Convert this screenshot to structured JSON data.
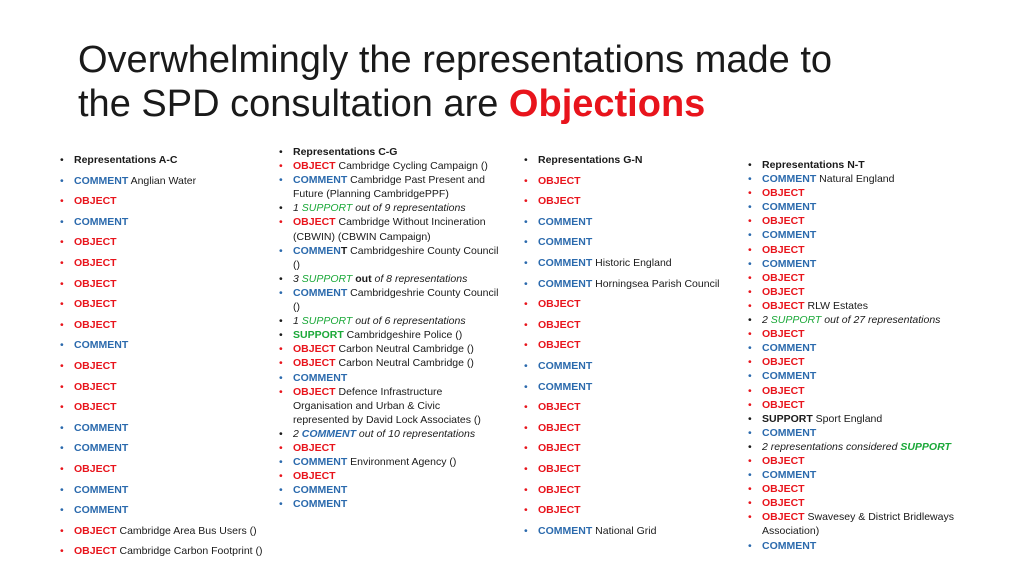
{
  "title": {
    "line1": "Overwhelmingly the representations made to",
    "line2_prefix": "the SPD consultation are ",
    "highlight": "Objections"
  },
  "colors": {
    "object": "#e8141c",
    "comment": "#2b6aad",
    "support": "#1aa838",
    "text": "#1a1a1a"
  },
  "columns": [
    {
      "id": "a-c",
      "items": [
        [
          {
            "t": "Representations A-C",
            "s": "head"
          }
        ],
        [
          {
            "t": "COMMENT",
            "s": "comment"
          },
          {
            "t": " Anglian Water",
            "s": "text"
          }
        ],
        [
          {
            "t": "OBJECT",
            "s": "object"
          }
        ],
        [
          {
            "t": "COMMENT",
            "s": "comment"
          }
        ],
        [
          {
            "t": "OBJECT",
            "s": "object"
          }
        ],
        [
          {
            "t": "OBJECT",
            "s": "object"
          }
        ],
        [
          {
            "t": "OBJECT",
            "s": "object"
          }
        ],
        [
          {
            "t": "OBJECT",
            "s": "object"
          }
        ],
        [
          {
            "t": "OBJECT",
            "s": "object"
          }
        ],
        [
          {
            "t": "COMMENT",
            "s": "comment"
          }
        ],
        [
          {
            "t": "OBJECT",
            "s": "object"
          }
        ],
        [
          {
            "t": "OBJECT",
            "s": "object"
          }
        ],
        [
          {
            "t": "OBJECT",
            "s": "object"
          }
        ],
        [
          {
            "t": "COMMENT",
            "s": "comment"
          }
        ],
        [
          {
            "t": "COMMENT",
            "s": "comment"
          }
        ],
        [
          {
            "t": "OBJECT",
            "s": "object"
          }
        ],
        [
          {
            "t": "COMMENT",
            "s": "comment"
          }
        ],
        [
          {
            "t": "COMMENT",
            "s": "comment"
          }
        ],
        [
          {
            "t": "OBJECT",
            "s": "object"
          },
          {
            "t": " Cambridge Area Bus Users ()",
            "s": "text"
          }
        ],
        [
          {
            "t": "OBJECT",
            "s": "object"
          },
          {
            "t": " Cambridge Carbon Footprint ()",
            "s": "text"
          }
        ]
      ]
    },
    {
      "id": "c-g",
      "items": [
        [
          {
            "t": "Representations C-G",
            "s": "head"
          }
        ],
        [
          {
            "t": "OBJECT",
            "s": "object"
          },
          {
            "t": " Cambridge Cycling Campaign ()",
            "s": "text"
          }
        ],
        [
          {
            "t": "COMMENT",
            "s": "comment"
          },
          {
            "t": " Cambridge Past Present and Future (Planning CambridgePPF)",
            "s": "text"
          }
        ],
        [
          {
            "t": "1 ",
            "s": "italic"
          },
          {
            "t": "SUPPORT",
            "s": "support"
          },
          {
            "t": " out of 9 representations",
            "s": "italic"
          }
        ],
        [
          {
            "t": "OBJECT",
            "s": "object"
          },
          {
            "t": " Cambridge Without Incineration (CBWIN) (CBWIN Campaign)",
            "s": "text"
          }
        ],
        [
          {
            "t": "COMMEN",
            "s": "comment"
          },
          {
            "t": "T",
            "s": "bold"
          },
          {
            "t": " Cambridgeshire County Council ()",
            "s": "text"
          }
        ],
        [
          {
            "t": "3 ",
            "s": "italic"
          },
          {
            "t": "SUPPORT",
            "s": "support"
          },
          {
            "t": " out",
            "s": "bold"
          },
          {
            "t": " of 8 representations",
            "s": "italic"
          }
        ],
        [
          {
            "t": "COMMENT",
            "s": "comment"
          },
          {
            "t": " Cambridgeshrie County Council ()",
            "s": "text"
          }
        ],
        [
          {
            "t": "1 ",
            "s": "italic"
          },
          {
            "t": "SUPPORT",
            "s": "support"
          },
          {
            "t": " out of 6 representations",
            "s": "italic"
          }
        ],
        [
          {
            "t": "SUPPORT",
            "s": "supbold"
          },
          {
            "t": " Cambridgeshire Police ()",
            "s": "text"
          }
        ],
        [
          {
            "t": "OBJECT",
            "s": "object"
          },
          {
            "t": " Carbon Neutral Cambridge ()",
            "s": "text"
          }
        ],
        [
          {
            "t": "OBJECT",
            "s": "object"
          },
          {
            "t": " Carbon Neutral Cambridge ()",
            "s": "text"
          }
        ],
        [
          {
            "t": "COMMENT",
            "s": "comment"
          }
        ],
        [
          {
            "t": "OBJECT",
            "s": "object"
          },
          {
            "t": " Defence Infrastructure Organisation and Urban & Civic represented by David Lock Associates ()",
            "s": "text"
          }
        ],
        [
          {
            "t": "2 ",
            "s": "italic"
          },
          {
            "t": "COMMENT",
            "s": "comment-italic"
          },
          {
            "t": " out of  10 representations",
            "s": "italic"
          }
        ],
        [
          {
            "t": "OBJECT",
            "s": "object"
          }
        ],
        [
          {
            "t": "COMMENT",
            "s": "comment"
          },
          {
            "t": " Environment Agency ()",
            "s": "text"
          }
        ],
        [
          {
            "t": "OBJECT",
            "s": "object"
          }
        ],
        [
          {
            "t": "COMMENT",
            "s": "comment"
          }
        ],
        [
          {
            "t": "COMMENT",
            "s": "comment"
          }
        ]
      ]
    },
    {
      "id": "g-n",
      "items": [
        [
          {
            "t": "Representations G-N",
            "s": "head"
          }
        ],
        [
          {
            "t": "OBJECT",
            "s": "object"
          }
        ],
        [
          {
            "t": "OBJECT",
            "s": "object"
          }
        ],
        [
          {
            "t": "COMMENT",
            "s": "comment"
          }
        ],
        [
          {
            "t": " COMMENT",
            "s": "comment"
          }
        ],
        [
          {
            "t": " COMMENT",
            "s": "comment"
          },
          {
            "t": " Historic England",
            "s": "text"
          }
        ],
        [
          {
            "t": " COMMENT",
            "s": "comment"
          },
          {
            "t": " Horningsea Parish Council",
            "s": "text"
          }
        ],
        [
          {
            "t": " OBJECT",
            "s": "object"
          }
        ],
        [
          {
            "t": " OBJECT",
            "s": "object"
          }
        ],
        [
          {
            "t": " OBJECT",
            "s": "object"
          }
        ],
        [
          {
            "t": " COMMENT",
            "s": "comment"
          }
        ],
        [
          {
            "t": " COMMENT",
            "s": "comment"
          }
        ],
        [
          {
            "t": " OBJECT",
            "s": "object"
          }
        ],
        [
          {
            "t": " OBJECT",
            "s": "object"
          }
        ],
        [
          {
            "t": " OBJECT",
            "s": "object"
          }
        ],
        [
          {
            "t": " OBJECT",
            "s": "object"
          }
        ],
        [
          {
            "t": " OBJECT",
            "s": "object"
          }
        ],
        [
          {
            "t": " OBJECT",
            "s": "object"
          }
        ],
        [
          {
            "t": " COMMENT",
            "s": "comment"
          },
          {
            "t": " National Grid",
            "s": "text"
          }
        ]
      ]
    },
    {
      "id": "n-t",
      "items": [
        [
          {
            "t": "Representations N-T",
            "s": "head"
          }
        ],
        [
          {
            "t": "COMMENT",
            "s": "comment"
          },
          {
            "t": " Natural England",
            "s": "text"
          }
        ],
        [
          {
            "t": "OBJECT",
            "s": "object"
          }
        ],
        [
          {
            "t": "COMMENT",
            "s": "comment"
          }
        ],
        [
          {
            "t": "OBJECT",
            "s": "object"
          }
        ],
        [
          {
            "t": "COMMENT",
            "s": "comment"
          }
        ],
        [
          {
            "t": "OBJECT",
            "s": "object"
          }
        ],
        [
          {
            "t": "COMMENT",
            "s": "comment"
          }
        ],
        [
          {
            "t": "OBJECT",
            "s": "object"
          }
        ],
        [
          {
            "t": "OBJECT",
            "s": "object"
          }
        ],
        [
          {
            "t": "OBJECT",
            "s": "object"
          },
          {
            "t": " RLW Estates",
            "s": "text"
          }
        ],
        [
          {
            "t": "2 ",
            "s": "italic"
          },
          {
            "t": "SUPPORT",
            "s": "support-italic"
          },
          {
            "t": " out of 27 representations",
            "s": "italic"
          }
        ],
        [
          {
            "t": "OBJECT",
            "s": "object"
          }
        ],
        [
          {
            "t": "COMMENT",
            "s": "comment"
          }
        ],
        [
          {
            "t": "OBJECT",
            "s": "object"
          }
        ],
        [
          {
            "t": "COMMENT",
            "s": "comment"
          }
        ],
        [
          {
            "t": "OBJECT",
            "s": "object"
          }
        ],
        [
          {
            "t": "OBJECT",
            "s": "object"
          }
        ],
        [
          {
            "t": "SUPPORT",
            "s": "plainbold"
          },
          {
            "t": " Sport England",
            "s": "text"
          }
        ],
        [
          {
            "t": "COMMENT",
            "s": "comment"
          }
        ],
        [
          {
            "t": "2 representations considered ",
            "s": "italic"
          },
          {
            "t": "SUPPORT",
            "s": "support-bold-italic"
          }
        ],
        [
          {
            "t": "OBJECT",
            "s": "object"
          }
        ],
        [
          {
            "t": "COMMENT",
            "s": "comment"
          }
        ],
        [
          {
            "t": "OBJECT",
            "s": "object"
          }
        ],
        [
          {
            "t": "OBJECT",
            "s": "object"
          }
        ],
        [
          {
            "t": "OBJECT",
            "s": "object"
          },
          {
            "t": " Swavesey & District Bridleways Association)",
            "s": "text"
          }
        ],
        [
          {
            "t": "COMMENT",
            "s": "comment"
          }
        ]
      ]
    }
  ]
}
